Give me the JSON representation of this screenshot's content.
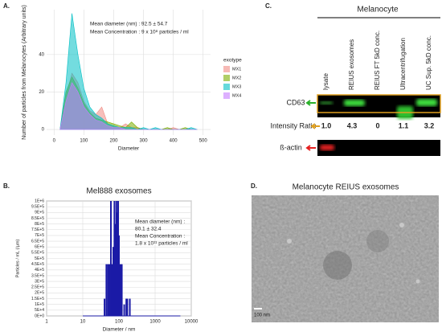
{
  "panel_labels": [
    "A.",
    "B.",
    "C.",
    "D."
  ],
  "chart_data": [
    {
      "type": "area",
      "x_label": "Diameter",
      "y_label": "Number of particles from Melanocytes (Arbitrary units)",
      "annotations": [
        "Mean diameter (nm) : 92.5 ± 54.7",
        "Mean Concentration : 9 x 10⁸ particles / ml"
      ],
      "legend_title": "exotype",
      "x": [
        20,
        40,
        60,
        80,
        100,
        120,
        140,
        160,
        180,
        200,
        220,
        240,
        260,
        280,
        300,
        320,
        340,
        360,
        380,
        400,
        420,
        440,
        460,
        480
      ],
      "series": [
        {
          "name": "MX1",
          "color": "#f08b83",
          "values": [
            0,
            18,
            30,
            25,
            15,
            10,
            8,
            12,
            3,
            2,
            1,
            3,
            1,
            1,
            0,
            0,
            0,
            0,
            0,
            1,
            0,
            0,
            0,
            0
          ]
        },
        {
          "name": "MX2",
          "color": "#7cae00",
          "values": [
            0,
            20,
            28,
            22,
            14,
            9,
            6,
            5,
            4,
            3,
            2,
            1,
            4,
            1,
            0,
            0,
            0,
            0,
            1,
            0,
            0,
            1,
            0,
            0
          ]
        },
        {
          "name": "MX3",
          "color": "#00bfc4",
          "values": [
            0,
            25,
            62,
            40,
            22,
            12,
            8,
            6,
            3,
            2,
            1,
            1,
            1,
            0,
            1,
            0,
            1,
            0,
            0,
            0,
            0,
            0,
            1,
            0
          ]
        },
        {
          "name": "MX4",
          "color": "#c77cff",
          "values": [
            0,
            15,
            25,
            20,
            12,
            8,
            5,
            4,
            2,
            1,
            1,
            0,
            0,
            0,
            0,
            0,
            0,
            0,
            0,
            0,
            0,
            0,
            0,
            0
          ]
        }
      ],
      "xlim": [
        -25,
        525
      ],
      "xticks": [
        0,
        100,
        200,
        300,
        400,
        500
      ],
      "ylim": [
        -3,
        64
      ],
      "yticks": [
        0,
        20,
        40
      ],
      "grid": true
    },
    {
      "type": "bar",
      "title": "Mel888 exosomes",
      "x_label": "Diameter / nm",
      "y_label": "Particles / mL (/µm)",
      "annotations": [
        "Mean diameter (nm) :",
        "80.1 ± 32.4",
        "Mean Concentration :",
        "1.8 x 10¹¹ particles / ml"
      ],
      "color": "#1a1aa6",
      "x": [
        10,
        40,
        45,
        50,
        55,
        60,
        65,
        70,
        75,
        80,
        85,
        90,
        95,
        100,
        110,
        120,
        140,
        160,
        170,
        200,
        5000
      ],
      "values": [
        0,
        150000,
        450000,
        450000,
        450000,
        1000000,
        450000,
        600000,
        1000000,
        800000,
        1000000,
        900000,
        1000000,
        700000,
        450000,
        450000,
        100000,
        150000,
        150000,
        150000,
        0
      ],
      "log_x": true,
      "xlim": [
        1,
        10000
      ],
      "xticks": [
        1,
        10,
        100,
        1000,
        10000
      ],
      "ylim": [
        0,
        1000000
      ],
      "yticks": [
        {
          "value": 0,
          "label": "0E+0"
        },
        {
          "value": 50000,
          "label": "5E+4"
        },
        {
          "value": 100000,
          "label": "1E+5"
        },
        {
          "value": 150000,
          "label": "1.5E+5"
        },
        {
          "value": 200000,
          "label": "2E+5"
        },
        {
          "value": 250000,
          "label": "2.5E+5"
        },
        {
          "value": 300000,
          "label": "3E+5"
        },
        {
          "value": 350000,
          "label": "3.5E+5"
        },
        {
          "value": 400000,
          "label": "4E+5"
        },
        {
          "value": 450000,
          "label": "4.5E+5"
        },
        {
          "value": 500000,
          "label": "5E+5"
        },
        {
          "value": 550000,
          "label": "5.5E+5"
        },
        {
          "value": 600000,
          "label": "6E+5"
        },
        {
          "value": 650000,
          "label": "6.5E+5"
        },
        {
          "value": 700000,
          "label": "7E+5"
        },
        {
          "value": 750000,
          "label": "7.5E+5"
        },
        {
          "value": 800000,
          "label": "8E+5"
        },
        {
          "value": 850000,
          "label": "8.5E+5"
        },
        {
          "value": 900000,
          "label": "9E+5"
        },
        {
          "value": 950000,
          "label": "9.5E+5"
        },
        {
          "value": 1000000,
          "label": "1E+6"
        }
      ],
      "grid": true
    }
  ],
  "blot": {
    "header": "Melanocyte",
    "lanes": [
      "lysate",
      "REIUS exosomes",
      "REIUS FT 5kD conc.",
      "Ultracentrifugation",
      "UC Sup. 5kD conc."
    ],
    "cd63_label": "CD63",
    "intensity_label": "Intensity Ratio",
    "intensity": [
      "1.0",
      "4.3",
      "0",
      "1.1",
      "3.2"
    ],
    "actin_label": "ß-actin"
  },
  "micrograph": {
    "title": "Melanocyte REIUS exosomes",
    "scale_bar": "100 nm"
  }
}
